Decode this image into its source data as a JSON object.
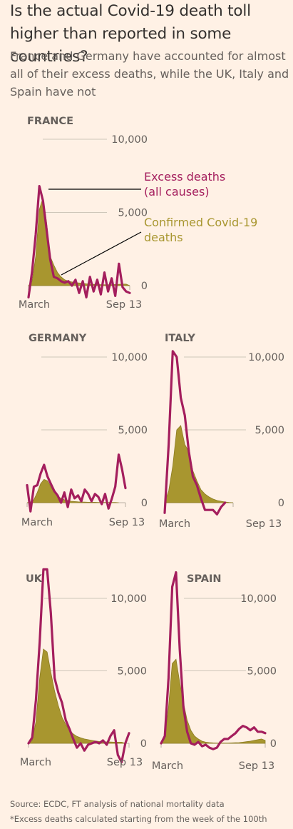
{
  "title": "Is the actual Covid-19 death toll higher than reported in some countries?",
  "subtitle": "France and Germany have accounted for almost all of their excess deaths, while the UK, Italy and Spain have not",
  "source": "Source: ECDC, FT analysis of national mortality data",
  "footnote": "*Excess deaths calculated starting from the week of the 100th",
  "colors": {
    "background": "#FFF1E5",
    "excess": "#A41E5D",
    "covid": "#A8962F",
    "grid": "#CEC6B9",
    "text": "#33302E",
    "muted": "#66605C"
  },
  "annotations": {
    "excess": [
      "Excess deaths",
      "(all causes)"
    ],
    "covid": [
      "Confirmed Covid-19",
      "deaths"
    ]
  },
  "chart_data": [
    {
      "type": "area",
      "country": "FRANCE",
      "ylim": [
        0,
        10000
      ],
      "yticks": [
        {
          "value": 0,
          "label": "0"
        },
        {
          "value": 5000,
          "label": "5,000"
        },
        {
          "value": 10000,
          "label": "10,000"
        }
      ],
      "xlabels": [
        "March",
        "Sep 13"
      ],
      "series": [
        {
          "name": "Excess deaths (all causes)",
          "kind": "line",
          "x": [
            0,
            1,
            2,
            3,
            4,
            5,
            6,
            7,
            8,
            9,
            10,
            11,
            12,
            13,
            14,
            15,
            16,
            17,
            18,
            19,
            20,
            21,
            22,
            23,
            24,
            25,
            26,
            27,
            28
          ],
          "values": [
            -800,
            1000,
            3500,
            6800,
            5800,
            3800,
            1800,
            600,
            500,
            300,
            200,
            300,
            0,
            400,
            -500,
            300,
            -800,
            600,
            -400,
            400,
            -600,
            900,
            -400,
            500,
            -700,
            1500,
            -100,
            -400,
            -500
          ]
        },
        {
          "name": "Confirmed Covid-19 deaths",
          "kind": "area",
          "x": [
            0,
            1,
            2,
            3,
            4,
            5,
            6,
            7,
            8,
            9,
            10,
            11,
            12,
            13,
            14,
            15,
            16,
            17,
            18,
            19,
            20,
            21,
            22,
            23,
            24,
            25,
            26,
            27,
            28
          ],
          "values": [
            0,
            300,
            2000,
            5200,
            6000,
            4300,
            2000,
            1400,
            900,
            600,
            400,
            300,
            250,
            200,
            180,
            150,
            120,
            100,
            90,
            80,
            70,
            60,
            60,
            70,
            80,
            90,
            100,
            100,
            0
          ]
        }
      ]
    },
    {
      "type": "area",
      "country": "GERMANY",
      "ylim": [
        0,
        10000
      ],
      "yticks": [
        {
          "value": 0,
          "label": "0"
        },
        {
          "value": 5000,
          "label": "5,000"
        },
        {
          "value": 10000,
          "label": "10,000"
        }
      ],
      "xlabels": [
        "March",
        "Sep 13"
      ],
      "series": [
        {
          "name": "Excess deaths (all causes)",
          "kind": "line",
          "x": [
            0,
            1,
            2,
            3,
            4,
            5,
            6,
            7,
            8,
            9,
            10,
            11,
            12,
            13,
            14,
            15,
            16,
            17,
            18,
            19,
            20,
            21,
            22,
            23,
            24,
            25,
            26,
            27,
            28,
            29
          ],
          "values": [
            1200,
            -600,
            1100,
            1200,
            2000,
            2600,
            1800,
            1300,
            800,
            500,
            0,
            700,
            -300,
            900,
            300,
            500,
            100,
            900,
            600,
            100,
            600,
            400,
            -100,
            600,
            -400,
            300,
            1100,
            3300,
            2300,
            1000
          ]
        },
        {
          "name": "Confirmed Covid-19 deaths",
          "kind": "area",
          "x": [
            0,
            1,
            2,
            3,
            4,
            5,
            6,
            7,
            8,
            9,
            10,
            11,
            12,
            13,
            14,
            15,
            16,
            17,
            18,
            19,
            20,
            21,
            22,
            23,
            24,
            25,
            26,
            27
          ],
          "values": [
            0,
            50,
            200,
            700,
            1300,
            1600,
            1500,
            1100,
            700,
            450,
            300,
            200,
            150,
            100,
            80,
            60,
            50,
            40,
            30,
            30,
            30,
            20,
            20,
            20,
            20,
            20,
            20,
            0
          ]
        }
      ]
    },
    {
      "type": "area",
      "country": "ITALY",
      "ylim": [
        0,
        10000
      ],
      "yticks": [
        {
          "value": 0,
          "label": "0"
        },
        {
          "value": 5000,
          "label": "5,000"
        },
        {
          "value": 10000,
          "label": "10,000"
        }
      ],
      "xlabels": [
        "March",
        "Sep 13"
      ],
      "series": [
        {
          "name": "Excess deaths (all causes)",
          "kind": "line",
          "x": [
            0,
            1,
            2,
            3,
            4,
            5,
            6,
            7,
            8,
            9,
            10,
            11,
            12,
            13,
            14,
            15
          ],
          "values": [
            -700,
            4000,
            10400,
            10000,
            7200,
            6000,
            3500,
            1800,
            1200,
            300,
            -500,
            -500,
            -500,
            -800,
            -300,
            0
          ]
        },
        {
          "name": "Confirmed Covid-19 deaths",
          "kind": "area",
          "x": [
            0,
            1,
            2,
            3,
            4,
            5,
            6,
            7,
            8,
            9,
            10,
            11,
            12,
            13,
            14,
            15,
            16,
            17
          ],
          "values": [
            0,
            800,
            2500,
            5000,
            5300,
            4000,
            3500,
            2200,
            1500,
            900,
            600,
            400,
            250,
            150,
            100,
            50,
            20,
            0
          ]
        }
      ]
    },
    {
      "type": "area",
      "country": "UK",
      "ylim": [
        0,
        10000
      ],
      "yticks": [
        {
          "value": 0,
          "label": "0"
        },
        {
          "value": 5000,
          "label": "5,000"
        },
        {
          "value": 10000,
          "label": "10,000"
        }
      ],
      "xlabels": [
        "March",
        "Sep 13"
      ],
      "series": [
        {
          "name": "Excess deaths (all causes)",
          "kind": "line",
          "x": [
            0,
            1,
            2,
            3,
            4,
            5,
            6,
            7,
            8,
            9,
            10,
            11,
            12,
            13,
            14,
            15,
            16,
            17,
            18,
            19,
            20,
            21,
            22,
            23,
            24,
            25,
            26,
            27
          ],
          "values": [
            0,
            400,
            3000,
            7000,
            12000,
            12000,
            9000,
            4500,
            3500,
            2800,
            1600,
            1000,
            300,
            -300,
            0,
            -500,
            -100,
            0,
            100,
            0,
            200,
            -100,
            500,
            900,
            -800,
            -1300,
            0,
            700
          ]
        },
        {
          "name": "Confirmed Covid-19 deaths",
          "kind": "area",
          "x": [
            0,
            1,
            2,
            3,
            4,
            5,
            6,
            7,
            8,
            9,
            10,
            11,
            12,
            13,
            14,
            15,
            16,
            17,
            18,
            19,
            20,
            21,
            22,
            23,
            24,
            25,
            26
          ],
          "values": [
            0,
            200,
            1500,
            4500,
            6500,
            6300,
            4900,
            3600,
            2600,
            1800,
            1300,
            900,
            650,
            480,
            380,
            300,
            250,
            200,
            160,
            130,
            110,
            100,
            90,
            80,
            80,
            80,
            0
          ]
        }
      ]
    },
    {
      "type": "area",
      "country": "SPAIN",
      "ylim": [
        0,
        10000
      ],
      "yticks": [
        {
          "value": 0,
          "label": "0"
        },
        {
          "value": 5000,
          "label": "5,000"
        },
        {
          "value": 10000,
          "label": "10,000"
        }
      ],
      "xlabels": [
        "March",
        "Sep 13"
      ],
      "series": [
        {
          "name": "Excess deaths (all causes)",
          "kind": "line",
          "x": [
            0,
            1,
            2,
            3,
            4,
            5,
            6,
            7,
            8,
            9,
            10,
            11,
            12,
            13,
            14,
            15,
            16,
            17,
            18,
            19,
            20,
            21,
            22,
            23,
            24,
            25,
            26,
            27,
            28
          ],
          "values": [
            0,
            500,
            4500,
            10800,
            11800,
            6500,
            2500,
            800,
            0,
            -100,
            100,
            -200,
            -100,
            -300,
            -400,
            -300,
            100,
            300,
            300,
            500,
            700,
            1000,
            1200,
            1100,
            900,
            1100,
            800,
            800,
            700
          ]
        },
        {
          "name": "Confirmed Covid-19 deaths",
          "kind": "area",
          "x": [
            0,
            1,
            2,
            3,
            4,
            5,
            6,
            7,
            8,
            9,
            10,
            11,
            12,
            13,
            14,
            15,
            16,
            17,
            18,
            19,
            20,
            21,
            22,
            23,
            24,
            25,
            26,
            27,
            28
          ],
          "values": [
            0,
            400,
            2500,
            5500,
            5800,
            4200,
            2800,
            1600,
            900,
            500,
            300,
            150,
            80,
            50,
            30,
            20,
            20,
            20,
            20,
            30,
            40,
            50,
            80,
            120,
            150,
            200,
            250,
            300,
            200
          ]
        }
      ]
    }
  ]
}
